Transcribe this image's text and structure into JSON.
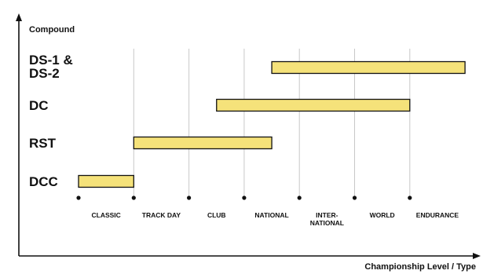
{
  "chart_data": {
    "type": "bar",
    "orientation": "horizontal-range",
    "ylabel": "Compound",
    "xlabel": "Championship Level / Type",
    "categories": [
      "CLASSIC",
      "TRACK DAY",
      "CLUB",
      "NATIONAL",
      "INTER-NATIONAL",
      "WORLD",
      "ENDURANCE"
    ],
    "category_label_lines": [
      [
        "CLASSIC"
      ],
      [
        "TRACK DAY"
      ],
      [
        "CLUB"
      ],
      [
        "NATIONAL"
      ],
      [
        "INTER-",
        "NATIONAL"
      ],
      [
        "WORLD"
      ],
      [
        "ENDURANCE"
      ]
    ],
    "compounds": [
      {
        "label_lines": [
          "DS-1 &",
          "DS-2"
        ],
        "start": 3.5,
        "end": 7.0
      },
      {
        "label_lines": [
          "DC"
        ],
        "start": 2.5,
        "end": 6.0
      },
      {
        "label_lines": [
          "RST"
        ],
        "start": 1.0,
        "end": 3.5
      },
      {
        "label_lines": [
          "DCC"
        ],
        "start": 0.0,
        "end": 1.0
      }
    ],
    "bar_color": "#f5e27a",
    "grid": "vertical",
    "grid_color": "#c8c8c8",
    "legend": "none"
  }
}
